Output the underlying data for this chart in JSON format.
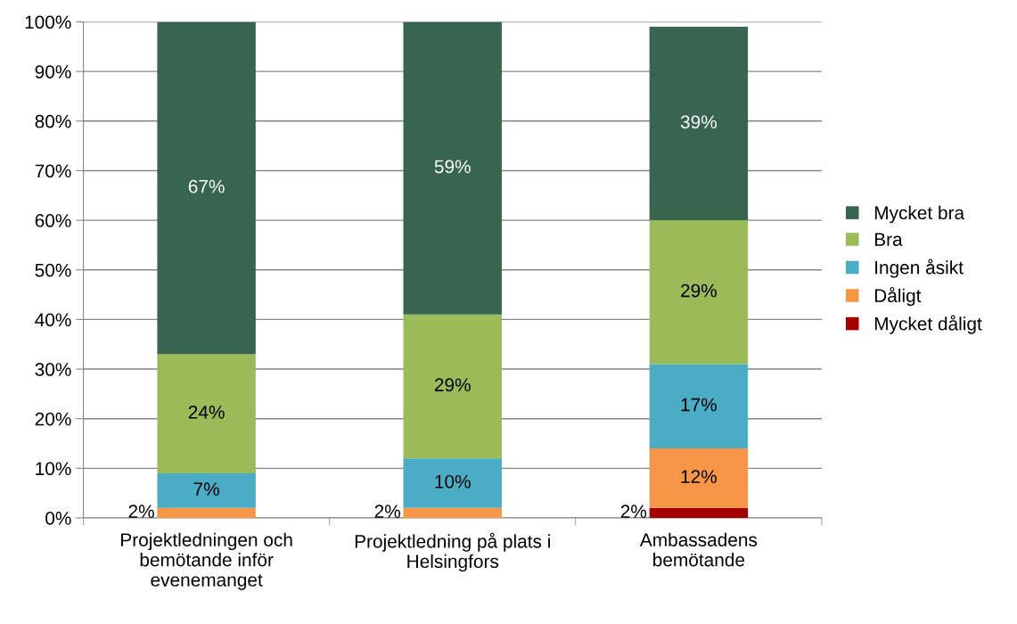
{
  "chart_data": {
    "type": "bar",
    "stacked": true,
    "categories": [
      "Projektledningen och\nbemötande inför\nevenemanget",
      "Projektledning på plats i\nHelsingfors",
      "Ambassadens\nbemötande"
    ],
    "series": [
      {
        "name": "Mycket dåligt",
        "color": "#a50000",
        "values": [
          0,
          0,
          2
        ],
        "value_labels": [
          null,
          null,
          "2%"
        ]
      },
      {
        "name": "Dåligt",
        "color": "#f79646",
        "values": [
          2,
          2,
          12
        ],
        "value_labels": [
          "2%",
          "2%",
          "12%"
        ]
      },
      {
        "name": "Ingen åsikt",
        "color": "#4bacc6",
        "values": [
          7,
          10,
          17
        ],
        "value_labels": [
          "7%",
          "10%",
          "17%"
        ]
      },
      {
        "name": "Bra",
        "color": "#9bbb59",
        "values": [
          24,
          29,
          29
        ],
        "value_labels": [
          "24%",
          "29%",
          "29%"
        ]
      },
      {
        "name": "Mycket bra",
        "color": "#376550",
        "values": [
          67,
          59,
          39
        ],
        "value_labels": [
          "67%",
          "59%",
          "39%"
        ]
      }
    ],
    "ylim": [
      0,
      100
    ],
    "yticks": [
      {
        "value": 0,
        "label": "0%"
      },
      {
        "value": 10,
        "label": "10%"
      },
      {
        "value": 20,
        "label": "20%"
      },
      {
        "value": 30,
        "label": "30%"
      },
      {
        "value": 40,
        "label": "40%"
      },
      {
        "value": 50,
        "label": "50%"
      },
      {
        "value": 60,
        "label": "60%"
      },
      {
        "value": 70,
        "label": "70%"
      },
      {
        "value": 80,
        "label": "80%"
      },
      {
        "value": 90,
        "label": "90%"
      },
      {
        "value": 100,
        "label": "100%"
      }
    ],
    "grid": "y",
    "legend": "right"
  }
}
